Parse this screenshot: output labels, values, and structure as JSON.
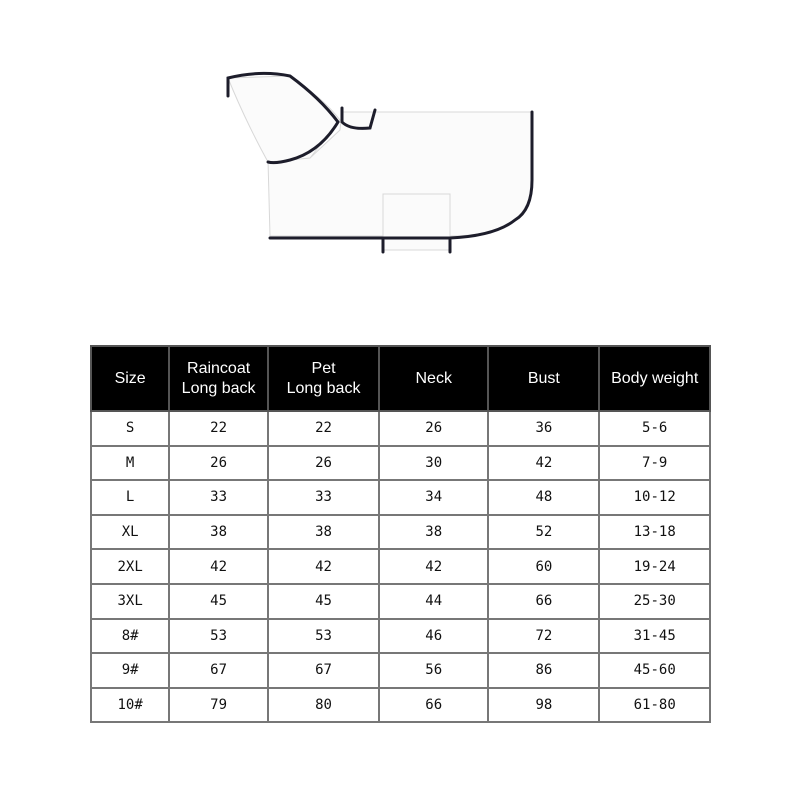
{
  "product_image": {
    "description_icon": "raincoat-illustration"
  },
  "size_table": {
    "headers": [
      "Size",
      "Raincoat\nLong back",
      "Pet\nLong back",
      "Neck",
      "Bust",
      "Body weight"
    ],
    "rows": [
      [
        "S",
        "22",
        "22",
        "26",
        "36",
        "5-6"
      ],
      [
        "M",
        "26",
        "26",
        "30",
        "42",
        "7-9"
      ],
      [
        "L",
        "33",
        "33",
        "34",
        "48",
        "10-12"
      ],
      [
        "XL",
        "38",
        "38",
        "38",
        "52",
        "13-18"
      ],
      [
        "2XL",
        "42",
        "42",
        "42",
        "60",
        "19-24"
      ],
      [
        "3XL",
        "45",
        "45",
        "44",
        "66",
        "25-30"
      ],
      [
        "8#",
        "53",
        "53",
        "46",
        "72",
        "31-45"
      ],
      [
        "9#",
        "67",
        "67",
        "56",
        "86",
        "45-60"
      ],
      [
        "10#",
        "79",
        "80",
        "66",
        "98",
        "61-80"
      ]
    ]
  }
}
